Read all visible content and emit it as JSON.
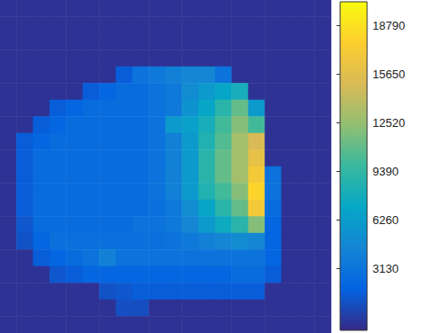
{
  "chart_data": {
    "type": "heatmap",
    "tick_labels": false,
    "cells": [
      [
        -500,
        -500,
        -500,
        -500,
        -500,
        -500,
        -500,
        -500,
        -500,
        -500,
        -500,
        -500,
        -500,
        -500,
        -500,
        -500,
        -500,
        -500,
        -500,
        -500
      ],
      [
        -500,
        -500,
        -500,
        -500,
        -500,
        -500,
        -500,
        -500,
        -500,
        -500,
        -500,
        -500,
        -500,
        -500,
        -500,
        -500,
        -500,
        -500,
        -500,
        -500
      ],
      [
        -500,
        -500,
        -500,
        -500,
        -500,
        -500,
        -500,
        -500,
        -500,
        -500,
        -500,
        -500,
        -500,
        -500,
        -500,
        -500,
        -500,
        -500,
        -500,
        -500
      ],
      [
        -500,
        -500,
        -500,
        -500,
        -500,
        -500,
        -500,
        -500,
        -500,
        -500,
        -500,
        -500,
        -500,
        -500,
        -500,
        -500,
        -500,
        -500,
        -500,
        -500
      ],
      [
        -500,
        -500,
        -500,
        -500,
        -500,
        -500,
        -500,
        1500,
        3000,
        3500,
        4000,
        4500,
        4500,
        3000,
        -500,
        -500,
        -500,
        -500,
        -500,
        -500
      ],
      [
        -500,
        -500,
        -500,
        -500,
        -500,
        1500,
        2000,
        2500,
        2500,
        3000,
        3500,
        5000,
        6000,
        7000,
        8000,
        -500,
        -500,
        -500,
        -500,
        -500
      ],
      [
        -500,
        -500,
        -500,
        1500,
        2000,
        2500,
        2500,
        2500,
        2500,
        3000,
        3500,
        5500,
        7000,
        9000,
        11000,
        6000,
        -500,
        -500,
        -500,
        -500
      ],
      [
        -500,
        -500,
        1500,
        2000,
        2500,
        2500,
        2500,
        2500,
        2500,
        3000,
        6000,
        6500,
        8000,
        10000,
        12000,
        10000,
        -500,
        -500,
        -500,
        -500
      ],
      [
        -500,
        1500,
        2000,
        2500,
        2500,
        2500,
        2500,
        2500,
        2500,
        3000,
        4000,
        6000,
        8500,
        10500,
        13000,
        15000,
        -500,
        -500,
        -500,
        -500
      ],
      [
        -500,
        1500,
        2500,
        2500,
        2500,
        2500,
        2500,
        2500,
        2500,
        3000,
        4000,
        6000,
        9000,
        11000,
        13000,
        16000,
        -500,
        -500,
        -500,
        -500
      ],
      [
        -500,
        1500,
        2500,
        2500,
        2500,
        2500,
        2500,
        2500,
        2500,
        3000,
        4000,
        6000,
        9000,
        11000,
        13000,
        17000,
        3000,
        -500,
        -500,
        -500
      ],
      [
        -500,
        1500,
        2500,
        2500,
        2500,
        2500,
        2500,
        2500,
        2500,
        3000,
        4000,
        6000,
        8500,
        10000,
        12000,
        18000,
        3000,
        -500,
        -500,
        -500
      ],
      [
        -500,
        1500,
        2500,
        2500,
        2500,
        2500,
        2500,
        2500,
        2500,
        2800,
        3500,
        5000,
        7000,
        9000,
        11000,
        17000,
        2500,
        -500,
        -500,
        -500
      ],
      [
        -500,
        1200,
        2500,
        2500,
        2500,
        2500,
        2500,
        2500,
        3000,
        3000,
        3500,
        4500,
        6000,
        7500,
        9000,
        12000,
        2000,
        -500,
        -500,
        -500
      ],
      [
        -500,
        1000,
        2000,
        2800,
        2800,
        2800,
        2800,
        2800,
        2800,
        2800,
        3000,
        3500,
        4000,
        4500,
        5000,
        4500,
        2000,
        -500,
        -500,
        -500
      ],
      [
        -500,
        -500,
        1500,
        2000,
        2500,
        3000,
        4000,
        3000,
        3000,
        3000,
        3000,
        3000,
        3000,
        3000,
        3000,
        3000,
        2000,
        -500,
        -500,
        -500
      ],
      [
        -500,
        -500,
        -500,
        1200,
        1500,
        2000,
        2000,
        2000,
        2000,
        2000,
        2000,
        2000,
        2000,
        2000,
        2500,
        2500,
        1500,
        -500,
        -500,
        -500
      ],
      [
        -500,
        -500,
        -500,
        -500,
        -500,
        -500,
        1000,
        1200,
        1500,
        1500,
        1500,
        1500,
        1500,
        1500,
        1500,
        1500,
        -500,
        -500,
        -500,
        -500
      ],
      [
        -500,
        -500,
        -500,
        -500,
        -500,
        -500,
        -500,
        900,
        800,
        -500,
        -500,
        -500,
        -500,
        -500,
        -500,
        -500,
        -500,
        -500,
        -500,
        -500
      ],
      [
        -500,
        -500,
        -500,
        -500,
        -500,
        -500,
        -500,
        -500,
        -500,
        -500,
        -500,
        -500,
        -500,
        -500,
        -500,
        -500,
        -500,
        -500,
        -500,
        -500
      ]
    ],
    "colorbar": {
      "range": [
        -870,
        20300
      ],
      "ticks": [
        3130,
        6260,
        9390,
        12520,
        15650,
        18790
      ]
    }
  }
}
